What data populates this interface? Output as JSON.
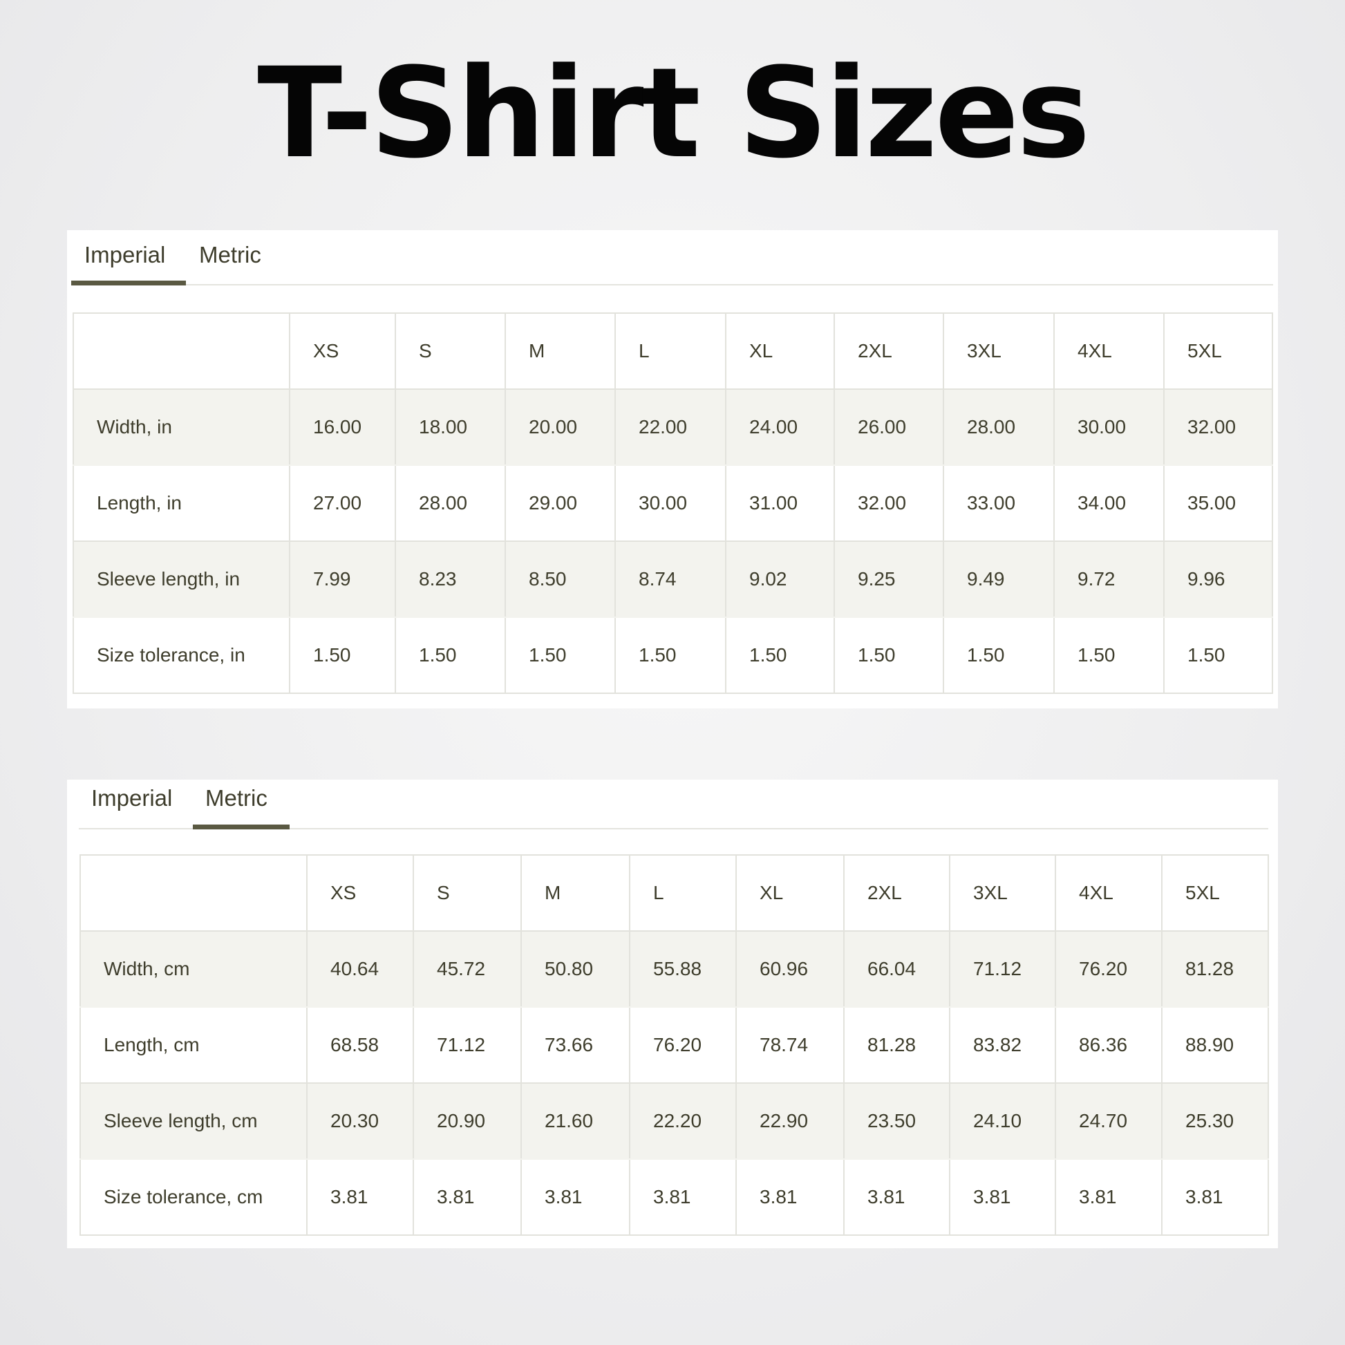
{
  "title": "T-Shirt Sizes",
  "colors": {
    "accent": "#5a5942",
    "text": "#3e3d2c",
    "stripe": "#f3f3ee"
  },
  "imperial_panel": {
    "tabs": [
      {
        "label": "Imperial",
        "active": true
      },
      {
        "label": "Metric",
        "active": false
      }
    ],
    "sizes": [
      "XS",
      "S",
      "M",
      "L",
      "XL",
      "2XL",
      "3XL",
      "4XL",
      "5XL"
    ],
    "rows": [
      {
        "label": "Width, in",
        "values": [
          "16.00",
          "18.00",
          "20.00",
          "22.00",
          "24.00",
          "26.00",
          "28.00",
          "30.00",
          "32.00"
        ]
      },
      {
        "label": "Length, in",
        "values": [
          "27.00",
          "28.00",
          "29.00",
          "30.00",
          "31.00",
          "32.00",
          "33.00",
          "34.00",
          "35.00"
        ]
      },
      {
        "label": "Sleeve length, in",
        "values": [
          "7.99",
          "8.23",
          "8.50",
          "8.74",
          "9.02",
          "9.25",
          "9.49",
          "9.72",
          "9.96"
        ]
      },
      {
        "label": "Size tolerance, in",
        "values": [
          "1.50",
          "1.50",
          "1.50",
          "1.50",
          "1.50",
          "1.50",
          "1.50",
          "1.50",
          "1.50"
        ]
      }
    ]
  },
  "metric_panel": {
    "tabs": [
      {
        "label": "Imperial",
        "active": false
      },
      {
        "label": "Metric",
        "active": true
      }
    ],
    "sizes": [
      "XS",
      "S",
      "M",
      "L",
      "XL",
      "2XL",
      "3XL",
      "4XL",
      "5XL"
    ],
    "rows": [
      {
        "label": "Width, cm",
        "values": [
          "40.64",
          "45.72",
          "50.80",
          "55.88",
          "60.96",
          "66.04",
          "71.12",
          "76.20",
          "81.28"
        ]
      },
      {
        "label": "Length, cm",
        "values": [
          "68.58",
          "71.12",
          "73.66",
          "76.20",
          "78.74",
          "81.28",
          "83.82",
          "86.36",
          "88.90"
        ]
      },
      {
        "label": "Sleeve length, cm",
        "values": [
          "20.30",
          "20.90",
          "21.60",
          "22.20",
          "22.90",
          "23.50",
          "24.10",
          "24.70",
          "25.30"
        ]
      },
      {
        "label": "Size tolerance, cm",
        "values": [
          "3.81",
          "3.81",
          "3.81",
          "3.81",
          "3.81",
          "3.81",
          "3.81",
          "3.81",
          "3.81"
        ]
      }
    ]
  }
}
